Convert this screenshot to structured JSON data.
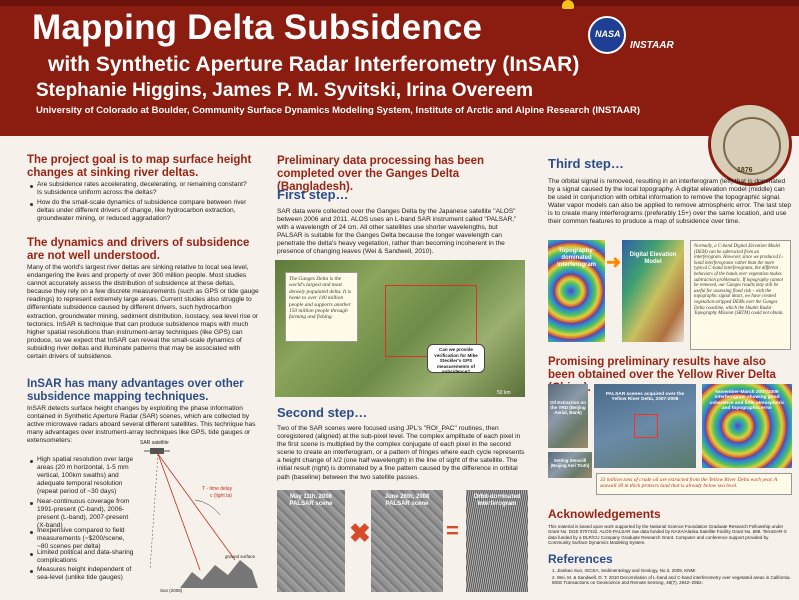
{
  "header": {
    "title": "Mapping Delta Subsidence",
    "subtitle": "with Synthetic Aperture Radar Interferometry (InSAR)",
    "authors": "Stephanie Higgins, James P. M. Syvitski, Irina Overeem",
    "affiliation": "University of Colorado at Boulder, Community Surface Dynamics Modeling System, Institute of Arctic and Alpine Research  (INSTAAR)",
    "logos": {
      "nasa": "NASA",
      "instaar": "INSTAAR",
      "seal_year": "1876"
    }
  },
  "col1": {
    "goal_heading": "The project goal is to map surface height changes at sinking river deltas.",
    "goal_bullets": [
      "Are subsidence rates accelerating, decelerating, or remaining constant? Is subsidence uniform across the deltas?",
      "How do the small-scale dynamics of subsidence compare between river deltas under different drivers of change, like hydrocarbon extraction, groundwater mining, or reduced aggradation?"
    ],
    "dynamics_heading": "The dynamics and drivers of subsidence are not well understood.",
    "dynamics_text": "Many of the world's largest river deltas are sinking relative to local sea level, endangering the lives and property of over 300 million people. Most studies cannot accurately assess the distribution of subsidence at these deltas, because they rely on a few discrete measurements (such as GPS or tide gauge readings) to represent extremely large areas. Current studies also struggle to differentiate subsidence caused by different drivers, such hydrocarbon extraction, groundwater mining, sediment distribution, isostacy, sea level rise or tectonics. InSAR is technique that can produce subsidence maps with much higher spatial resolutions than instrument-array techniques (like GPS) can produce, so we expect that InSAR can reveal the small-scale dynamics of subsiding river deltas and illuminate patterns that may be associated with certain drivers of subsidence.",
    "insar_heading": "InSAR has many advantages over other subsidence mapping techniques.",
    "insar_text": "InSAR detects surface height changes by exploiting the phase information contained in Synthetic Aperture Radar (SAR) scenes, which are collected by active microwave radars aboard several different satellites. This technique has many advantages over instrument-array techniques like GPS, tide gauges or extensometers:",
    "insar_bullets": [
      "High spatial resolution over large areas (20 m horizontal, 1-5 mm vertical, 100km swaths) and adequate temporal resolution (repeat period of ~30 days)",
      "Near-continuous coverage from 1991-present (C-band), 2006-present (L-band), 2007-present (X-band)",
      "Inexpensive compared to field measurements (~$200/scene, ~80 scenes per delta)",
      "Limited political and data-sharing complications",
      "Measures height independent of sea-level (unlike tide gauges)"
    ],
    "diagram_labels": {
      "sat": "SAR satellite",
      "time": "T - time delay",
      "light": "c (light ta)",
      "ground": "ground surface",
      "sun": "Sun (2008)"
    }
  },
  "col2": {
    "heading": "Preliminary data processing has been completed over the Ganges Delta (Bangladesh).",
    "first_heading": "First step…",
    "first_text": "SAR data were collected over the Ganges Delta by the Japanese satellite \"ALOS\" between 2006 and 2011. ALOS uses an L-band SAR instrument called \"PALSAR,\" with a wavelength of 24 cm. All other satellites use shorter wavelengths, but PALSAR is suitable for the Ganges Delta because the longer wavelength can penetrate the delta's heavy vegetation, rather than becoming incoherent in the presence of changing leaves (Wei & Sandwell, 2010).",
    "ganges_caption": "The Ganges Delta is the world's largest and most densely populated delta. It is home to over 140 million people and supports another 150 million people through farming and fishing.",
    "verify_pill": "Can we provide verification for Mike Steckler's GPS measurements of subsidence?",
    "scale": "50 km",
    "second_heading": "Second step…",
    "second_text": "Two of the SAR scenes were focused using JPL's \"ROI_PAC\" routines, then coregistered (aligned) at the sub-pixel level. The complex amplitude of each pixel in the first scene is multiplied by the complex conjugate of each pixel in the second scene to create an interferogram, or a pattern of fringes where each cycle represents a height change of λ/2 (one half wavelength) in the line of sight of the satellite. The initial result (right) is dominated by a fine pattern caused by the difference in orbital path (baseline) between the two satellite passes.",
    "scene1": "May 11th, 2008 PALSAR scene",
    "scene2": "June 26th, 2008 PALSAR scene",
    "scene3": "Orbit-dominated interferogram",
    "times": "✖",
    "equals": "="
  },
  "col3": {
    "third_heading": "Third step…",
    "third_text": "The orbital signal is removed, resulting in an interferogram (left) that is dominated by a signal caused by the local topography.  A digital elevation model (middle) can be used in conjunction with orbital information to remove the topographic signal. Water vapor models can also be applied to remove atmospheric error. The last step is to create many interferograms (preferably 15+) over the same location, and use their common features to produce a map of subsidence over time.",
    "topo_label": "Topography-dominated interferogram",
    "dem_label": "Digital Elevation Model",
    "dem_caption": "Normally, a C-band Digital Elevation Model (DEM) can be subtracted from an interferogram. However, since we produced L-band interferograms rather than the more typical C-band interferograms, the different behaviors of the bands over vegetation makes subtraction problematic. If topography cannot be removed, our Ganges results may still be useful for assessing flood risk – with the topographic signal intact, we have created vegetation-stripped DEMs over the Ganges Delta coastline, which the Shuttle Radar Topography Mission (SRTM) could not obtain.",
    "yellow_heading": "Promising preliminary results have also been obtained over the Yellow River Delta (China).",
    "yr_label1": "Oil Extraction on the YRD (Beijing Aerial, Bank)",
    "yr_label2": "PALSAR scenes acquired over the Yellow River Delta, 2007-2008",
    "yr_label3": "November-March 2007/2009 interferogram showing good coherence and little atmospheric and topographic error",
    "yr_label4": "Setting Stenciill (Beijing Aeri Truth)",
    "yr_caption": "33 million tons of crude oil are extracted from the Yellow River Delta each year. A seawall 30 m thick protects land that is already below sea level.",
    "ack_heading": "Acknowledgements",
    "ack_text": "This material is based upon work supported by the National Science Foundation Graduate Research Fellowship under Grant No. DGE 0707432. ALOS-PALSAR raw data funded by NASA/Alaska Satellite Facility Grant No. 688. TerraSAR-X data funded by a DLR/CU Company Graduate Research Grant. Computer and conference support provided by Community Surface Dynamics Modeling System.",
    "ref_heading": "References",
    "refs": [
      "1.   Jianbao Sun, IGCEA, Sedimentology and Geology, No.3, 2009, KNMI",
      "2.   Wei, M. & Sandwell, D. T. 2010 Decorrelation of L-band and C-band interferometry over vegetated areas in California. IEEE Transactions on Geoscience and Remote Sensing, 48(7), 2942–2952."
    ]
  },
  "colors": {
    "header_bg": "#8a1c10",
    "heading_red": "#9a2415",
    "heading_blue": "#2d4d8a",
    "background": "#f6f1ea"
  }
}
